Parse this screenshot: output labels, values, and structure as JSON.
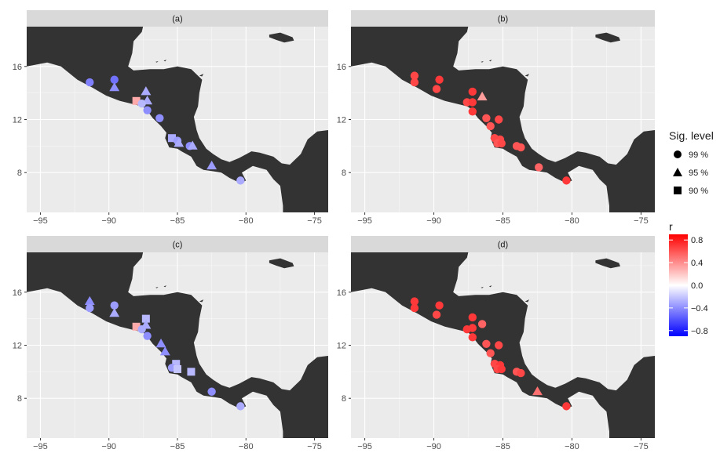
{
  "panels": [
    {
      "title": "(a)",
      "points": [
        {
          "lon": -91.4,
          "lat": 14.8,
          "shape": "circle",
          "r": -0.45
        },
        {
          "lon": -89.6,
          "lat": 15.0,
          "shape": "circle",
          "r": -0.5
        },
        {
          "lon": -89.6,
          "lat": 14.4,
          "shape": "triangle",
          "r": -0.4
        },
        {
          "lon": -88.0,
          "lat": 13.4,
          "shape": "square",
          "r": 0.3
        },
        {
          "lon": -87.3,
          "lat": 14.1,
          "shape": "triangle",
          "r": -0.3
        },
        {
          "lon": -87.2,
          "lat": 13.4,
          "shape": "triangle",
          "r": -0.3
        },
        {
          "lon": -87.6,
          "lat": 13.2,
          "shape": "circle",
          "r": -0.25
        },
        {
          "lon": -87.2,
          "lat": 12.7,
          "shape": "circle",
          "r": -0.4
        },
        {
          "lon": -86.3,
          "lat": 12.1,
          "shape": "circle",
          "r": -0.4
        },
        {
          "lon": -85.4,
          "lat": 10.6,
          "shape": "square",
          "r": -0.3
        },
        {
          "lon": -85.0,
          "lat": 10.4,
          "shape": "circle",
          "r": -0.35
        },
        {
          "lon": -84.9,
          "lat": 10.2,
          "shape": "triangle",
          "r": -0.3
        },
        {
          "lon": -84.1,
          "lat": 10.0,
          "shape": "circle",
          "r": -0.4
        },
        {
          "lon": -83.9,
          "lat": 10.0,
          "shape": "triangle",
          "r": -0.3
        },
        {
          "lon": -82.5,
          "lat": 8.5,
          "shape": "triangle",
          "r": -0.35
        },
        {
          "lon": -80.4,
          "lat": 7.4,
          "shape": "circle",
          "r": -0.3
        }
      ]
    },
    {
      "title": "(b)",
      "points": [
        {
          "lon": -91.4,
          "lat": 15.3,
          "shape": "circle",
          "r": 0.65
        },
        {
          "lon": -91.4,
          "lat": 14.8,
          "shape": "circle",
          "r": 0.65
        },
        {
          "lon": -89.6,
          "lat": 15.0,
          "shape": "circle",
          "r": 0.7
        },
        {
          "lon": -89.8,
          "lat": 14.3,
          "shape": "circle",
          "r": 0.65
        },
        {
          "lon": -87.2,
          "lat": 14.1,
          "shape": "circle",
          "r": 0.7
        },
        {
          "lon": -86.5,
          "lat": 13.7,
          "shape": "triangle",
          "r": 0.35
        },
        {
          "lon": -87.6,
          "lat": 13.3,
          "shape": "circle",
          "r": 0.65
        },
        {
          "lon": -87.2,
          "lat": 13.3,
          "shape": "circle",
          "r": 0.7
        },
        {
          "lon": -87.2,
          "lat": 12.6,
          "shape": "circle",
          "r": 0.7
        },
        {
          "lon": -86.2,
          "lat": 12.1,
          "shape": "circle",
          "r": 0.6
        },
        {
          "lon": -85.3,
          "lat": 12.0,
          "shape": "circle",
          "r": 0.65
        },
        {
          "lon": -85.9,
          "lat": 11.5,
          "shape": "circle",
          "r": 0.6
        },
        {
          "lon": -85.6,
          "lat": 10.6,
          "shape": "circle",
          "r": 0.65
        },
        {
          "lon": -85.2,
          "lat": 10.5,
          "shape": "circle",
          "r": 0.65
        },
        {
          "lon": -85.4,
          "lat": 10.2,
          "shape": "circle",
          "r": 0.6
        },
        {
          "lon": -85.1,
          "lat": 10.2,
          "shape": "circle",
          "r": 0.65
        },
        {
          "lon": -84.0,
          "lat": 10.0,
          "shape": "circle",
          "r": 0.6
        },
        {
          "lon": -83.7,
          "lat": 9.9,
          "shape": "circle",
          "r": 0.6
        },
        {
          "lon": -82.4,
          "lat": 8.4,
          "shape": "circle",
          "r": 0.55
        },
        {
          "lon": -80.4,
          "lat": 7.4,
          "shape": "circle",
          "r": 0.7
        }
      ]
    },
    {
      "title": "(c)",
      "points": [
        {
          "lon": -91.4,
          "lat": 15.3,
          "shape": "triangle",
          "r": -0.4
        },
        {
          "lon": -91.4,
          "lat": 14.8,
          "shape": "circle",
          "r": -0.35
        },
        {
          "lon": -89.6,
          "lat": 15.0,
          "shape": "circle",
          "r": -0.35
        },
        {
          "lon": -89.6,
          "lat": 14.4,
          "shape": "triangle",
          "r": -0.3
        },
        {
          "lon": -88.0,
          "lat": 13.4,
          "shape": "square",
          "r": 0.3
        },
        {
          "lon": -87.3,
          "lat": 14.0,
          "shape": "square",
          "r": -0.25
        },
        {
          "lon": -87.3,
          "lat": 13.5,
          "shape": "triangle",
          "r": -0.3
        },
        {
          "lon": -87.6,
          "lat": 13.2,
          "shape": "circle",
          "r": -0.3
        },
        {
          "lon": -87.2,
          "lat": 12.7,
          "shape": "circle",
          "r": -0.4
        },
        {
          "lon": -86.2,
          "lat": 12.1,
          "shape": "triangle",
          "r": -0.4
        },
        {
          "lon": -85.9,
          "lat": 11.5,
          "shape": "triangle",
          "r": -0.4
        },
        {
          "lon": -85.1,
          "lat": 10.6,
          "shape": "square",
          "r": -0.25
        },
        {
          "lon": -85.4,
          "lat": 10.3,
          "shape": "circle",
          "r": -0.35
        },
        {
          "lon": -85.0,
          "lat": 10.2,
          "shape": "square",
          "r": -0.2
        },
        {
          "lon": -84.0,
          "lat": 10.0,
          "shape": "square",
          "r": -0.25
        },
        {
          "lon": -82.5,
          "lat": 8.5,
          "shape": "circle",
          "r": -0.4
        },
        {
          "lon": -80.4,
          "lat": 7.4,
          "shape": "circle",
          "r": -0.3
        }
      ]
    },
    {
      "title": "(d)",
      "points": [
        {
          "lon": -91.4,
          "lat": 15.3,
          "shape": "circle",
          "r": 0.7
        },
        {
          "lon": -91.4,
          "lat": 14.8,
          "shape": "circle",
          "r": 0.7
        },
        {
          "lon": -89.6,
          "lat": 15.0,
          "shape": "circle",
          "r": 0.7
        },
        {
          "lon": -89.8,
          "lat": 14.3,
          "shape": "circle",
          "r": 0.65
        },
        {
          "lon": -87.2,
          "lat": 14.1,
          "shape": "circle",
          "r": 0.7
        },
        {
          "lon": -87.2,
          "lat": 13.3,
          "shape": "circle",
          "r": 0.7
        },
        {
          "lon": -87.6,
          "lat": 13.2,
          "shape": "circle",
          "r": 0.7
        },
        {
          "lon": -86.5,
          "lat": 13.6,
          "shape": "circle",
          "r": 0.55
        },
        {
          "lon": -87.2,
          "lat": 12.6,
          "shape": "circle",
          "r": 0.7
        },
        {
          "lon": -86.2,
          "lat": 12.1,
          "shape": "circle",
          "r": 0.6
        },
        {
          "lon": -85.3,
          "lat": 12.0,
          "shape": "circle",
          "r": 0.65
        },
        {
          "lon": -85.9,
          "lat": 11.4,
          "shape": "circle",
          "r": 0.6
        },
        {
          "lon": -85.6,
          "lat": 10.6,
          "shape": "circle",
          "r": 0.65
        },
        {
          "lon": -85.2,
          "lat": 10.5,
          "shape": "circle",
          "r": 0.7
        },
        {
          "lon": -85.4,
          "lat": 10.2,
          "shape": "circle",
          "r": 0.65
        },
        {
          "lon": -85.1,
          "lat": 10.2,
          "shape": "circle",
          "r": 0.7
        },
        {
          "lon": -84.0,
          "lat": 10.0,
          "shape": "circle",
          "r": 0.6
        },
        {
          "lon": -83.7,
          "lat": 9.9,
          "shape": "circle",
          "r": 0.65
        },
        {
          "lon": -82.5,
          "lat": 8.5,
          "shape": "triangle",
          "r": 0.5
        },
        {
          "lon": -80.4,
          "lat": 7.4,
          "shape": "circle",
          "r": 0.7
        }
      ]
    }
  ],
  "axes": {
    "x_ticks": [
      -95,
      -90,
      -85,
      -80,
      -75
    ],
    "x_tick_labels": [
      "−95",
      "−90",
      "−85",
      "−80",
      "−75"
    ],
    "y_ticks": [
      8,
      12,
      16
    ],
    "y_tick_labels": [
      "8",
      "12",
      "16"
    ],
    "lon_range": [
      -96,
      -74
    ],
    "lat_range": [
      5,
      19
    ]
  },
  "legend": {
    "sig_title": "Sig. level",
    "sig_items": [
      {
        "shape": "circle",
        "label": "99 %"
      },
      {
        "shape": "triangle",
        "label": "95 %"
      },
      {
        "shape": "square",
        "label": "90 %"
      }
    ],
    "r_title": "r",
    "r_ticks": [
      0.8,
      0.4,
      0.0,
      -0.4,
      -0.8
    ],
    "r_tick_labels": [
      "0.8",
      "0.4",
      "0.0",
      "−0.4",
      "−0.8"
    ],
    "r_range": [
      -0.9,
      0.9
    ]
  },
  "colors": {
    "land": "#333333",
    "panel_bg": "#ebebeb",
    "grid": "#ffffff",
    "strip_bg": "#d9d9d9",
    "low": "#0000ff",
    "mid": "#ffffff",
    "high": "#ff0000"
  }
}
